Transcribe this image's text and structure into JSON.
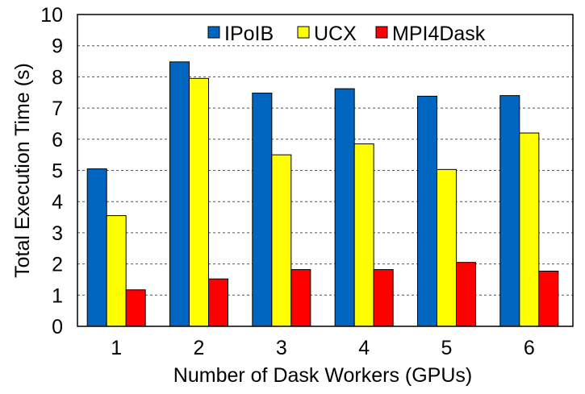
{
  "chart_data": {
    "type": "bar",
    "xlabel": "Number of Dask Workers (GPUs)",
    "ylabel": "Total Execution Time (s)",
    "categories": [
      "1",
      "2",
      "3",
      "4",
      "5",
      "6"
    ],
    "ylim": [
      0,
      10
    ],
    "yticks": [
      "0",
      "1",
      "2",
      "3",
      "4",
      "5",
      "6",
      "7",
      "8",
      "9",
      "10"
    ],
    "grid": "horizontal dashed",
    "legend_position": "top-center",
    "series": [
      {
        "name": "IPoIB",
        "color": "#0066c0",
        "values": [
          5.05,
          8.48,
          7.48,
          7.62,
          7.38,
          7.4
        ]
      },
      {
        "name": "UCX",
        "color": "#ffff00",
        "values": [
          3.55,
          7.95,
          5.5,
          5.85,
          5.03,
          6.2
        ]
      },
      {
        "name": "MPI4Dask",
        "color": "#ff0000",
        "values": [
          1.17,
          1.52,
          1.82,
          1.82,
          2.05,
          1.77
        ]
      }
    ]
  }
}
